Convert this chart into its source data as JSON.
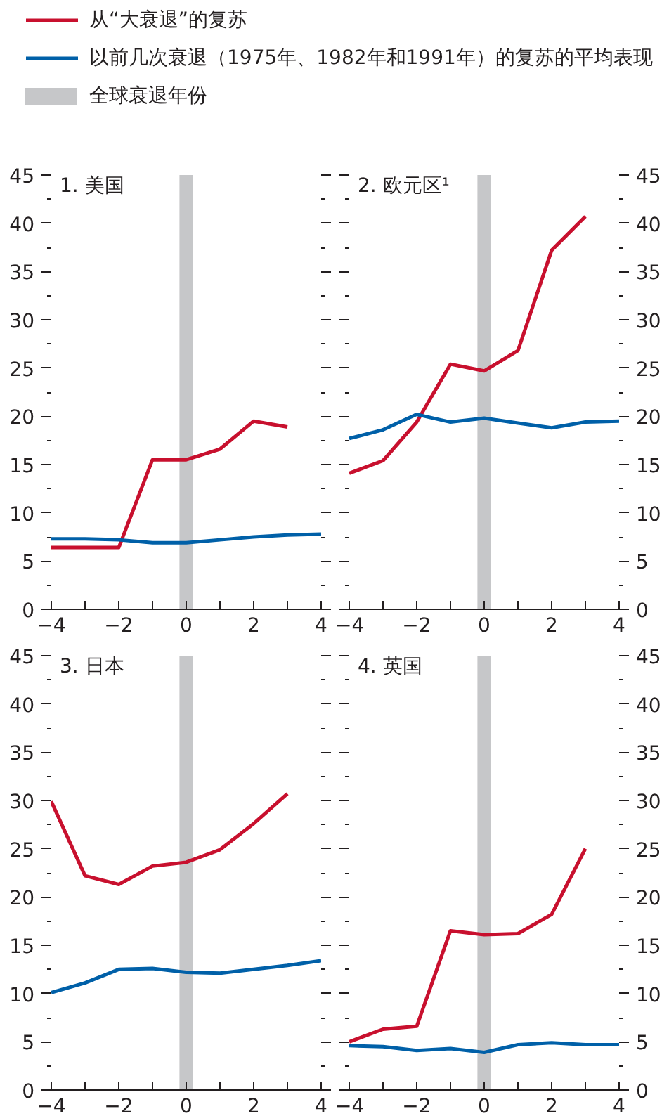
{
  "chart_data": [
    {
      "type": "line",
      "title": "1. 美国",
      "x": [
        -4,
        -3,
        -2,
        -1,
        0,
        1,
        2,
        3,
        4
      ],
      "legend": "top",
      "grid": false,
      "xlim": [
        -4,
        4
      ],
      "xticks": [
        -4,
        {
          "value": -3,
          "label": null
        },
        -2,
        {
          "value": -1,
          "label": null
        },
        0,
        {
          "value": 1,
          "label": null
        },
        2,
        {
          "value": 3,
          "label": null
        },
        4
      ],
      "ylim": [
        0,
        45
      ],
      "yticks": [
        0,
        5,
        10,
        15,
        20,
        25,
        30,
        35,
        40,
        45
      ],
      "bands": [
        {
          "axis": "x",
          "from": -0.2,
          "to": 0.2,
          "label": "全球衰退年份",
          "color": "#c6c7c9"
        }
      ],
      "series": [
        {
          "name": "从“大衰退”的复苏",
          "color": "#c8102e",
          "values": [
            6.4,
            6.4,
            6.4,
            15.5,
            15.5,
            16.6,
            19.5,
            18.9,
            null
          ]
        },
        {
          "name": "以前几次衰退（1975年、1982年和1991年）的复苏的平均表现",
          "color": "#0060a8",
          "values": [
            7.3,
            7.3,
            7.2,
            6.9,
            6.9,
            7.2,
            7.5,
            7.7,
            7.8
          ]
        }
      ]
    },
    {
      "type": "line",
      "title": "2. 欧元区¹",
      "x": [
        -4,
        -3,
        -2,
        -1,
        0,
        1,
        2,
        3,
        4
      ],
      "grid": false,
      "xlim": [
        -4,
        4
      ],
      "xticks": [
        -4,
        {
          "value": -3,
          "label": null
        },
        -2,
        {
          "value": -1,
          "label": null
        },
        0,
        {
          "value": 1,
          "label": null
        },
        2,
        {
          "value": 3,
          "label": null
        },
        4
      ],
      "y2lim": [
        0,
        45
      ],
      "y2ticks": [
        0,
        5,
        10,
        15,
        20,
        25,
        30,
        35,
        40,
        45
      ],
      "bands": [
        {
          "axis": "x",
          "from": -0.2,
          "to": 0.2,
          "color": "#c6c7c9"
        }
      ],
      "series": [
        {
          "color": "#c8102e",
          "axis": "y2",
          "values": [
            14.1,
            15.4,
            19.4,
            25.4,
            24.7,
            26.8,
            37.2,
            40.7,
            null
          ]
        },
        {
          "color": "#0060a8",
          "axis": "y2",
          "values": [
            17.7,
            18.6,
            20.2,
            19.4,
            19.8,
            19.3,
            18.8,
            19.4,
            19.5
          ]
        }
      ]
    },
    {
      "type": "line",
      "title": "3. 日本",
      "x": [
        -4,
        -3,
        -2,
        -1,
        0,
        1,
        2,
        3,
        4
      ],
      "grid": false,
      "xlim": [
        -4,
        4
      ],
      "xticks": [
        -4,
        {
          "value": -3,
          "label": null
        },
        -2,
        {
          "value": -1,
          "label": null
        },
        0,
        {
          "value": 1,
          "label": null
        },
        2,
        {
          "value": 3,
          "label": null
        },
        4
      ],
      "ylim": [
        0,
        45
      ],
      "yticks": [
        0,
        5,
        10,
        15,
        20,
        25,
        30,
        35,
        40,
        45
      ],
      "bands": [
        {
          "axis": "x",
          "from": -0.2,
          "to": 0.2,
          "color": "#c6c7c9"
        }
      ],
      "series": [
        {
          "color": "#c8102e",
          "values": [
            29.9,
            22.2,
            21.3,
            23.2,
            23.6,
            24.9,
            27.6,
            30.7,
            null
          ]
        },
        {
          "color": "#0060a8",
          "values": [
            10.1,
            11.1,
            12.5,
            12.6,
            12.2,
            12.1,
            12.5,
            12.9,
            13.4
          ]
        }
      ]
    },
    {
      "type": "line",
      "title": "4. 英国",
      "x": [
        -4,
        -3,
        -2,
        -1,
        0,
        1,
        2,
        3,
        4
      ],
      "grid": false,
      "xlim": [
        -4,
        4
      ],
      "xticks": [
        -4,
        {
          "value": -3,
          "label": null
        },
        -2,
        {
          "value": -1,
          "label": null
        },
        0,
        {
          "value": 1,
          "label": null
        },
        2,
        {
          "value": 3,
          "label": null
        },
        4
      ],
      "y2lim": [
        0,
        45
      ],
      "y2ticks": [
        0,
        5,
        10,
        15,
        20,
        25,
        30,
        35,
        40,
        45
      ],
      "bands": [
        {
          "axis": "x",
          "from": -0.2,
          "to": 0.2,
          "color": "#c6c7c9"
        }
      ],
      "series": [
        {
          "color": "#c8102e",
          "axis": "y2",
          "values": [
            5.0,
            6.3,
            6.6,
            16.5,
            16.1,
            16.2,
            18.2,
            25.0,
            null
          ]
        },
        {
          "color": "#0060a8",
          "axis": "y2",
          "values": [
            4.6,
            4.5,
            4.1,
            4.3,
            3.9,
            4.7,
            4.9,
            4.7,
            4.7
          ]
        }
      ]
    }
  ]
}
